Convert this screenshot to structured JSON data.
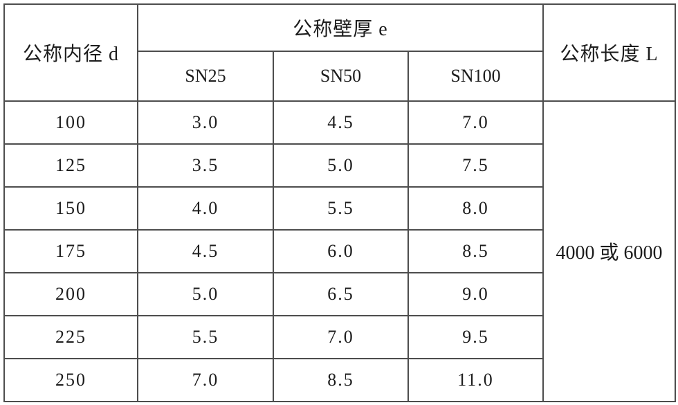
{
  "table": {
    "header": {
      "diameter_label": "公称内径 d",
      "wall_thickness_group_label": "公称壁厚 e",
      "sn_labels": [
        "SN25",
        "SN50",
        "SN100"
      ],
      "length_label": "公称长度 L"
    },
    "rows": [
      {
        "d": "100",
        "sn25": "3.0",
        "sn50": "4.5",
        "sn100": "7.0"
      },
      {
        "d": "125",
        "sn25": "3.5",
        "sn50": "5.0",
        "sn100": "7.5"
      },
      {
        "d": "150",
        "sn25": "4.0",
        "sn50": "5.5",
        "sn100": "8.0"
      },
      {
        "d": "175",
        "sn25": "4.5",
        "sn50": "6.0",
        "sn100": "8.5"
      },
      {
        "d": "200",
        "sn25": "5.0",
        "sn50": "6.5",
        "sn100": "9.0"
      },
      {
        "d": "225",
        "sn25": "5.5",
        "sn50": "7.0",
        "sn100": "9.5"
      },
      {
        "d": "250",
        "sn25": "7.0",
        "sn50": "8.5",
        "sn100": "11.0"
      }
    ],
    "length_value": "4000 或 6000"
  }
}
